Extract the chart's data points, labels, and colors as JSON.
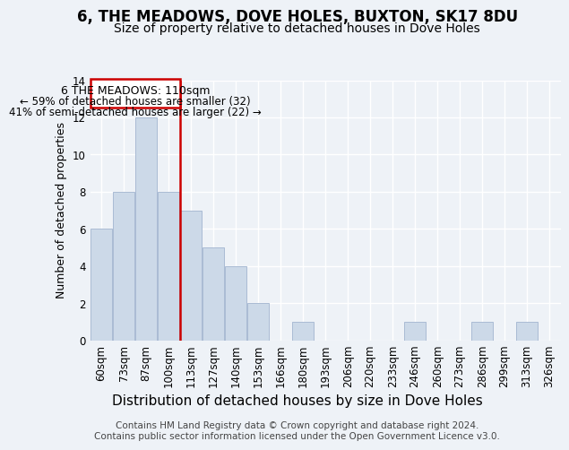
{
  "title": "6, THE MEADOWS, DOVE HOLES, BUXTON, SK17 8DU",
  "subtitle": "Size of property relative to detached houses in Dove Holes",
  "xlabel": "Distribution of detached houses by size in Dove Holes",
  "ylabel": "Number of detached properties",
  "categories": [
    "60sqm",
    "73sqm",
    "87sqm",
    "100sqm",
    "113sqm",
    "127sqm",
    "140sqm",
    "153sqm",
    "166sqm",
    "180sqm",
    "193sqm",
    "206sqm",
    "220sqm",
    "233sqm",
    "246sqm",
    "260sqm",
    "273sqm",
    "286sqm",
    "299sqm",
    "313sqm",
    "326sqm"
  ],
  "values": [
    6,
    8,
    12,
    8,
    7,
    5,
    4,
    2,
    0,
    1,
    0,
    0,
    0,
    0,
    1,
    0,
    0,
    1,
    0,
    1,
    0
  ],
  "bar_color": "#ccd9e8",
  "bar_edgecolor": "#aabbd4",
  "ref_line_color": "#cc0000",
  "ref_line_index": 4,
  "ylim": [
    0,
    14
  ],
  "yticks": [
    0,
    2,
    4,
    6,
    8,
    10,
    12,
    14
  ],
  "annotation_line1": "6 THE MEADOWS: 110sqm",
  "annotation_line2": "← 59% of detached houses are smaller (32)",
  "annotation_line3": "41% of semi-detached houses are larger (22) →",
  "annotation_box_color": "#cc0000",
  "annotation_box_facecolor": "#ffffff",
  "footer_line1": "Contains HM Land Registry data © Crown copyright and database right 2024.",
  "footer_line2": "Contains public sector information licensed under the Open Government Licence v3.0.",
  "background_color": "#eef2f7",
  "plot_bg_color": "#eef2f7",
  "grid_color": "#ffffff",
  "title_fontsize": 12,
  "subtitle_fontsize": 10,
  "xlabel_fontsize": 11,
  "ylabel_fontsize": 9,
  "tick_fontsize": 8.5,
  "annotation_fontsize": 9,
  "footer_fontsize": 7.5
}
